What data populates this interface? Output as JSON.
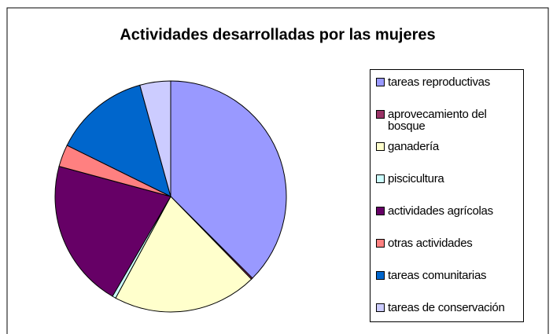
{
  "chart_data": {
    "type": "pie",
    "title": "Actividades desarrolladas por las mujeres",
    "categories": [
      "tareas reproductivas",
      "aprovecamiento del bosque",
      "ganadería",
      "piscicultura",
      "actividades agrícolas",
      "otras actividades",
      "tareas comunitarias",
      "tareas de conservación"
    ],
    "values": [
      37.5,
      0.2,
      20.2,
      0.5,
      20.8,
      3.1,
      13.4,
      4.3
    ],
    "colors": [
      "#9999ff",
      "#993366",
      "#ffffcc",
      "#ccffff",
      "#660066",
      "#ff8080",
      "#0066cc",
      "#ccccff"
    ],
    "legend": "right"
  }
}
